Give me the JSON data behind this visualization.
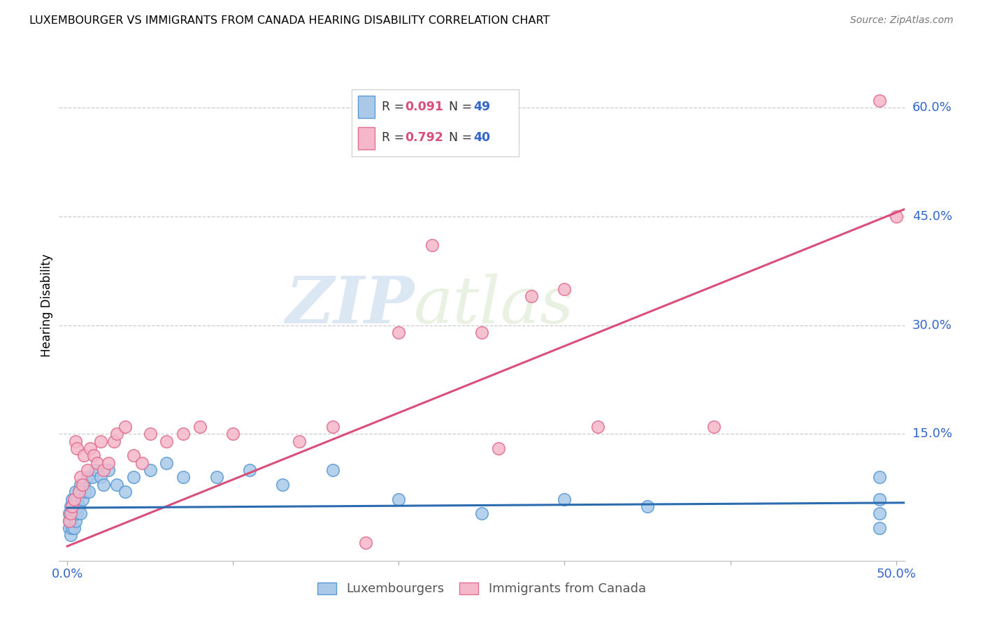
{
  "title": "LUXEMBOURGER VS IMMIGRANTS FROM CANADA HEARING DISABILITY CORRELATION CHART",
  "source": "Source: ZipAtlas.com",
  "ylabel": "Hearing Disability",
  "xlim": [
    -0.005,
    0.505
  ],
  "ylim": [
    -0.025,
    0.68
  ],
  "xticklabels_ends": [
    "0.0%",
    "50.0%"
  ],
  "yticks_right": [
    0.15,
    0.3,
    0.45,
    0.6
  ],
  "yticklabels_right": [
    "15.0%",
    "30.0%",
    "45.0%",
    "60.0%"
  ],
  "legend_labels": [
    "Luxembourgers",
    "Immigrants from Canada"
  ],
  "blue_color": "#aac9e8",
  "pink_color": "#f5b8cb",
  "blue_edge_color": "#5b9bd5",
  "pink_edge_color": "#e07090",
  "blue_line_color": "#2b6cb0",
  "pink_line_color": "#d94f7a",
  "watermark_zip": "ZIP",
  "watermark_atlas": "atlas",
  "blue_x": [
    0.001,
    0.001,
    0.001,
    0.002,
    0.002,
    0.002,
    0.003,
    0.003,
    0.003,
    0.004,
    0.004,
    0.004,
    0.005,
    0.005,
    0.005,
    0.006,
    0.006,
    0.007,
    0.007,
    0.008,
    0.008,
    0.009,
    0.01,
    0.011,
    0.012,
    0.013,
    0.015,
    0.017,
    0.02,
    0.022,
    0.025,
    0.03,
    0.035,
    0.04,
    0.05,
    0.06,
    0.07,
    0.09,
    0.11,
    0.13,
    0.16,
    0.2,
    0.25,
    0.3,
    0.35,
    0.49,
    0.49,
    0.49,
    0.49
  ],
  "blue_y": [
    0.02,
    0.03,
    0.04,
    0.01,
    0.03,
    0.05,
    0.02,
    0.04,
    0.06,
    0.02,
    0.04,
    0.06,
    0.03,
    0.05,
    0.07,
    0.04,
    0.06,
    0.05,
    0.07,
    0.04,
    0.08,
    0.06,
    0.08,
    0.07,
    0.09,
    0.07,
    0.09,
    0.1,
    0.09,
    0.08,
    0.1,
    0.08,
    0.07,
    0.09,
    0.1,
    0.11,
    0.09,
    0.09,
    0.1,
    0.08,
    0.1,
    0.06,
    0.04,
    0.06,
    0.05,
    0.02,
    0.06,
    0.04,
    0.09
  ],
  "pink_x": [
    0.001,
    0.002,
    0.003,
    0.004,
    0.005,
    0.006,
    0.007,
    0.008,
    0.009,
    0.01,
    0.012,
    0.014,
    0.016,
    0.018,
    0.02,
    0.022,
    0.025,
    0.028,
    0.03,
    0.035,
    0.04,
    0.045,
    0.05,
    0.06,
    0.07,
    0.08,
    0.1,
    0.14,
    0.16,
    0.18,
    0.2,
    0.22,
    0.25,
    0.28,
    0.32,
    0.39,
    0.49,
    0.5,
    0.26,
    0.3
  ],
  "pink_y": [
    0.03,
    0.04,
    0.05,
    0.06,
    0.14,
    0.13,
    0.07,
    0.09,
    0.08,
    0.12,
    0.1,
    0.13,
    0.12,
    0.11,
    0.14,
    0.1,
    0.11,
    0.14,
    0.15,
    0.16,
    0.12,
    0.11,
    0.15,
    0.14,
    0.15,
    0.16,
    0.15,
    0.14,
    0.16,
    0.0,
    0.29,
    0.41,
    0.29,
    0.34,
    0.16,
    0.16,
    0.61,
    0.45,
    0.13,
    0.35
  ],
  "pink_line_x0": 0.0,
  "pink_line_y0": -0.005,
  "pink_line_x1": 0.505,
  "pink_line_y1": 0.46,
  "blue_line_x0": 0.0,
  "blue_line_y0": 0.048,
  "blue_line_x1": 0.505,
  "blue_line_y1": 0.055
}
